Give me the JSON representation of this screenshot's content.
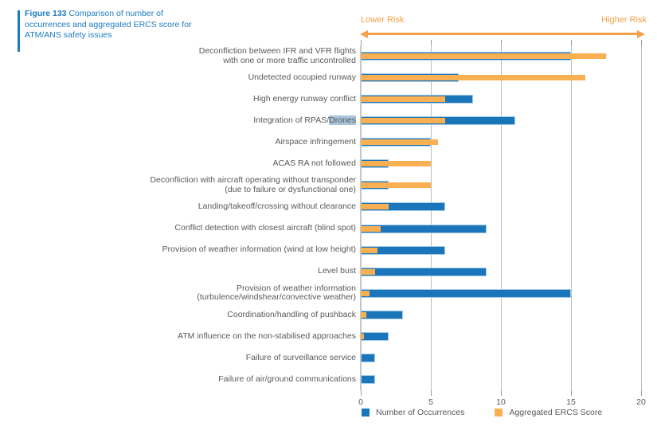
{
  "figure": {
    "label": "Figure 133",
    "title_rest": "Comparison of number of occurrences and aggregated ERCS score for ATM/ANS safety issues"
  },
  "risk_axis": {
    "left": "Lower Risk",
    "right": "Higher Risk",
    "color": "#F5A04A"
  },
  "legend": [
    {
      "label": "Number of Occurrences",
      "color": "#1B75BB"
    },
    {
      "label": "Aggregated ERCS Score",
      "color": "#F9B053"
    }
  ],
  "chart_data": {
    "type": "bar",
    "orientation": "horizontal",
    "title": "Comparison of number of occurrences and aggregated ERCS score for ATM/ANS safety issues",
    "xlabel": "",
    "ylabel": "",
    "xlim": [
      0,
      20
    ],
    "xticks": [
      0,
      5,
      10,
      15,
      20
    ],
    "grid": true,
    "legend_position": "bottom",
    "categories": [
      {
        "lines": [
          "Deconfliction between IFR and VFR flights",
          "with one or more traffic uncontrolled"
        ]
      },
      {
        "lines": [
          "Undetected occupied runway"
        ]
      },
      {
        "lines": [
          "High energy runway conflict"
        ]
      },
      {
        "lines": [
          "Integration of RPAS/"
        ],
        "highlight": "Drones"
      },
      {
        "lines": [
          "Airspace infringement"
        ]
      },
      {
        "lines": [
          "ACAS RA not followed"
        ]
      },
      {
        "lines": [
          "Deconfliction with aircraft operating without transponder",
          "(due to failure or dysfunctional one)"
        ]
      },
      {
        "lines": [
          "Landing/takeoff/crossing without clearance"
        ]
      },
      {
        "lines": [
          "Conflict detection with closest aircraft (blind spot)"
        ]
      },
      {
        "lines": [
          "Provision of weather information (wind at low height)"
        ]
      },
      {
        "lines": [
          "Level bust"
        ]
      },
      {
        "lines": [
          "Provision of weather information",
          "(turbulence/windshear/convective weather)"
        ]
      },
      {
        "lines": [
          "Coordination/handling of pushback"
        ]
      },
      {
        "lines": [
          "ATM influence on the non-stabilised approaches"
        ]
      },
      {
        "lines": [
          "Failure of surveillance service"
        ]
      },
      {
        "lines": [
          "Failure of air/ground communications"
        ]
      }
    ],
    "series": [
      {
        "name": "Number of Occurrences",
        "color": "#1B75BB",
        "values": [
          15,
          7,
          8,
          11,
          5,
          2,
          2,
          6,
          9,
          6,
          9,
          15,
          3,
          2,
          1,
          1
        ]
      },
      {
        "name": "Aggregated ERCS Score",
        "color": "#F9B053",
        "values": [
          17.5,
          16,
          6,
          6,
          5.5,
          5,
          5,
          2,
          1.4,
          1.2,
          1,
          0.6,
          0.4,
          0.2,
          0,
          0
        ]
      }
    ]
  }
}
